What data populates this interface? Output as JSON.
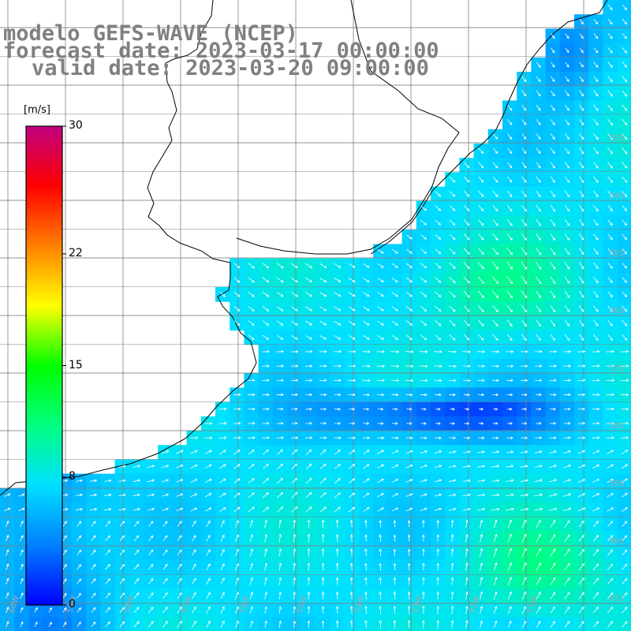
{
  "title": {
    "line1": "modelo GEFS-WAVE (NCEP)",
    "line2": "forecast date: 2023-03-17 00:00:00",
    "line3": "valid date: 2023-03-20 09:00:00"
  },
  "colorbar": {
    "unit": "[m/s]",
    "ticks": [
      {
        "label": "30",
        "value": 30
      },
      {
        "label": "22",
        "value": 22
      },
      {
        "label": "15",
        "value": 15
      },
      {
        "label": "8",
        "value": 8
      },
      {
        "label": "0",
        "value": 0
      }
    ],
    "colors": [
      "#0000ff",
      "#0080ff",
      "#00e0ff",
      "#00ff80",
      "#00ff00",
      "#ffff00",
      "#ff8000",
      "#ff0000",
      "#c00080"
    ]
  },
  "map": {
    "lat_labels": [
      "33S",
      "34S",
      "35S",
      "36S",
      "37S",
      "38S",
      "39S",
      "40S",
      "41S"
    ],
    "lon_labels": [
      "60W",
      "59W",
      "58W",
      "57W",
      "56W",
      "55W",
      "54W",
      "53W",
      "52W",
      "51W"
    ],
    "colors": {
      "land": "#ffffff",
      "grid": "#808080",
      "coast": "#000000",
      "arrow": "#ffffff",
      "label": "#a8a8a8"
    }
  }
}
